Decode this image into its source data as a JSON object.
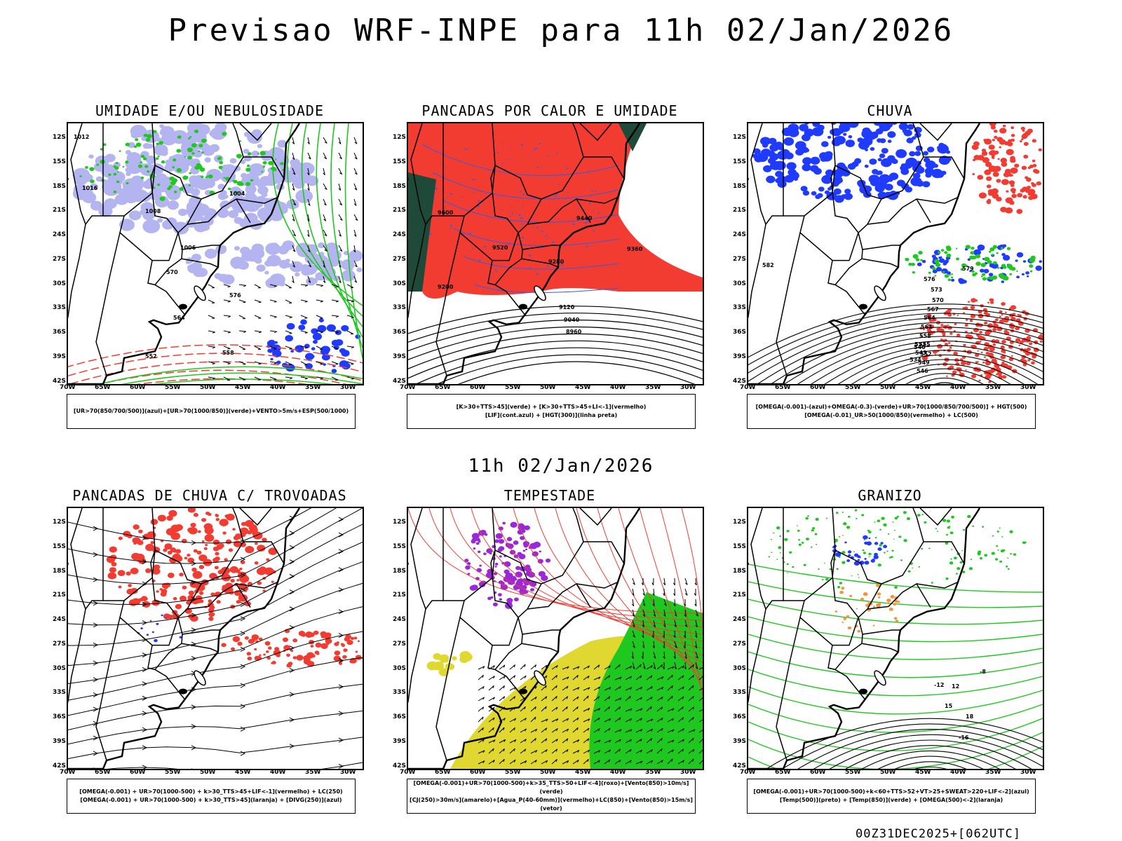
{
  "title": "Previsao WRF-INPE  para 11h 02/Jan/2026",
  "mid_title": "11h 02/Jan/2026",
  "footer": "00Z31DEC2025+[062UTC]",
  "latitudes": [
    "12S",
    "15S",
    "18S",
    "21S",
    "24S",
    "27S",
    "30S",
    "33S",
    "36S",
    "39S",
    "42S"
  ],
  "longitudes": [
    "70W",
    "65W",
    "60W",
    "55W",
    "50W",
    "45W",
    "40W",
    "35W",
    "30W"
  ],
  "colors": {
    "blue": "#1f3bff",
    "green": "#1fc81f",
    "red": "#f23c32",
    "purple": "#9a28d8",
    "yellow": "#e0d830",
    "orange": "#f0963c",
    "lavender": "#b4b4f0",
    "darkgreen": "#1f4a3a"
  },
  "panels": [
    {
      "id": "umidade",
      "title": "UMIDADE E/OU NEBULOSIDADE",
      "legend": [
        "[UR>70(850/700/500)](azul)+[UR>70(1000/850)](verde)+VENTO>5m/s+ESP(500/1000)"
      ],
      "contour_labels": [
        "1012",
        "1016",
        "1008",
        "1004",
        "576",
        "570",
        "564",
        "558",
        "552",
        "1006"
      ]
    },
    {
      "id": "pancadas-calor",
      "title": "PANCADAS POR CALOR E UMIDADE",
      "legend": [
        "[K>30+TTS>45](verde)  +  [K>30+TTS>45+LI<-1](vermelho)",
        "[LIF](cont.azul)  +  [HGT(300)](linha preta)"
      ],
      "contour_labels": [
        "9600",
        "9520",
        "9440",
        "9360",
        "9280",
        "9200",
        "9120",
        "9040",
        "8960"
      ]
    },
    {
      "id": "chuva",
      "title": "CHUVA",
      "legend": [
        "[OMEGA(-0.001)-(azul)+OMEGA(-0.3)-(verde)+UR>70(1000/850/700/500)]  +  HGT(500)",
        "[OMEGA(-0.01)_UR>50(1000/850)(vermelho)  +  LC(500)"
      ],
      "contour_labels": [
        "582",
        "579",
        "576",
        "573",
        "570",
        "567",
        "564",
        "561",
        "558",
        "555",
        "552",
        "549",
        "546",
        "543",
        "540",
        "537",
        "534"
      ]
    },
    {
      "id": "trovoadas",
      "title": "PANCADAS DE CHUVA C/ TROVOADAS",
      "legend": [
        "[OMEGA(-0.001)  +  UR>70(1000-500)  +  k>30_TTS>45+LIF<-1](vermelho)  +  LC(250)",
        "[OMEGA(-0.001)  +  UR>70(1000-500)  +  k>30_TTS>45](laranja)  +  [DIVG(250)](azul)"
      ],
      "contour_labels": []
    },
    {
      "id": "tempestade",
      "title": "TEMPESTADE",
      "legend": [
        "[OMEGA(-0.001)+UR>70(1000-500)+k>35_TTS>50+LIF<-4](roxo)+[Vento(850)>10m/s](verde)",
        "[CJ(250)>30m/s](amarelo)+[Agua_P(40-60mm)](vermelho)+LC(850)+[Vento(850)>15m/s](vetor)"
      ],
      "contour_labels": []
    },
    {
      "id": "granizo",
      "title": "GRANIZO",
      "legend": [
        "[OMEGA(-0.001)+UR>70(1000-500)+k<60+TTS>52+VT>25+SWEAT>220+LIF<-2](azul)",
        "[Temp(500)](preto)  +  [Temp(850)](verde)  +  [OMEGA(500)<-2](laranja)"
      ],
      "contour_labels": [
        "-8",
        "-12",
        "-16",
        "12",
        "15",
        "18"
      ]
    }
  ]
}
